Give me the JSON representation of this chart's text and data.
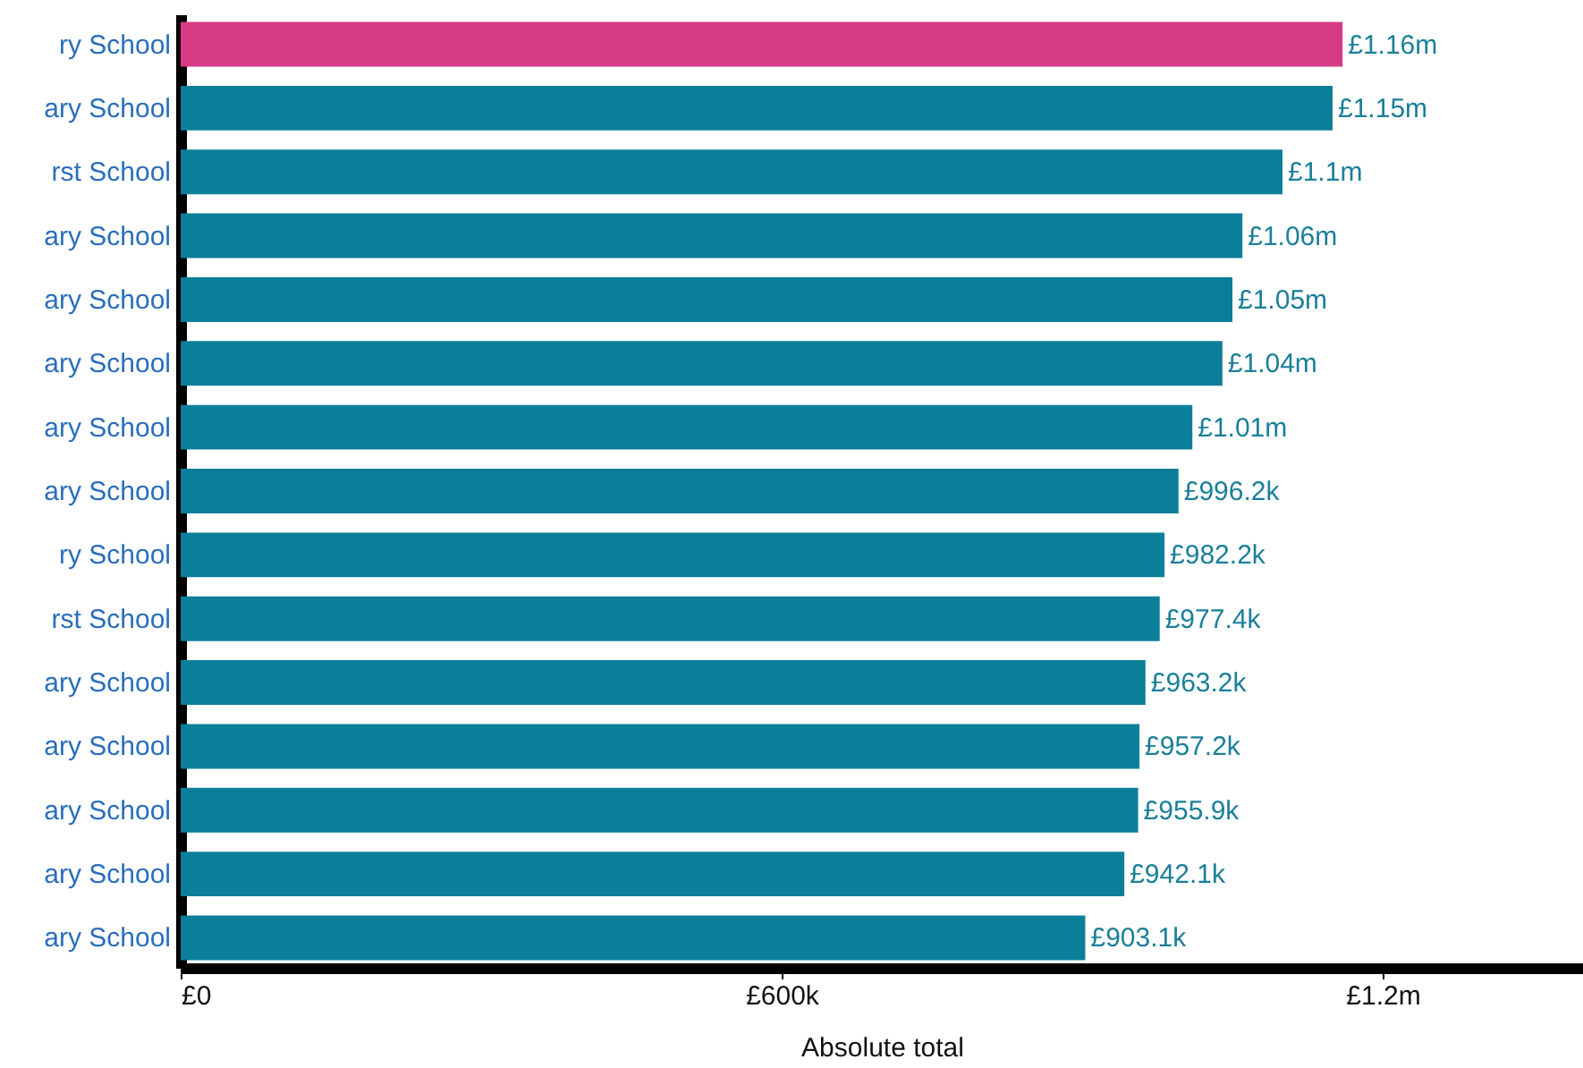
{
  "chart_data": {
    "type": "bar",
    "orientation": "horizontal",
    "xlabel": "Absolute total",
    "categories": [
      "ry School",
      "ary School",
      "rst School",
      "ary School",
      "ary School",
      "ary School",
      "ary School",
      "ary School",
      "ry School",
      "rst School",
      "ary School",
      "ary School",
      "ary School",
      "ary School",
      "ary School"
    ],
    "values": [
      1160000,
      1150000,
      1100000,
      1060000,
      1050000,
      1040000,
      1010000,
      996200,
      982200,
      977400,
      963200,
      957200,
      955900,
      942100,
      903100
    ],
    "value_labels": [
      "£1.16m",
      "£1.15m",
      "£1.1m",
      "£1.06m",
      "£1.05m",
      "£1.04m",
      "£1.01m",
      "£996.2k",
      "£982.2k",
      "£977.4k",
      "£963.2k",
      "£957.2k",
      "£955.9k",
      "£942.1k",
      "£903.1k"
    ],
    "colors": [
      "#d63a84",
      "#0b7f99",
      "#0b7f99",
      "#0b7f99",
      "#0b7f99",
      "#0b7f99",
      "#0b7f99",
      "#0b7f99",
      "#0b7f99",
      "#0b7f99",
      "#0b7f99",
      "#0b7f99",
      "#0b7f99",
      "#0b7f99",
      "#0b7f99"
    ],
    "xlim": [
      0,
      1400000
    ],
    "xticks": [
      {
        "value": 0,
        "label": "£0"
      },
      {
        "value": 600000,
        "label": "£600k"
      },
      {
        "value": 1200000,
        "label": "£1.2m"
      }
    ],
    "grid": false
  }
}
